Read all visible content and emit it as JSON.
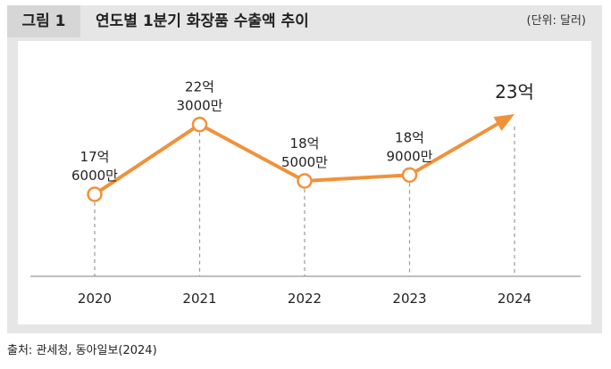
{
  "header": {
    "figure_label": "그림 1",
    "title": "연도별 1분기 화장품 수출액 추이",
    "unit": "(단위: 달러)"
  },
  "source": "출처: 관세청, 동아일보(2024)",
  "colors": {
    "line": "#f0923a",
    "marker_fill": "#ffffff",
    "guide": "#999999",
    "axis": "#aaaaaa"
  },
  "chart_data": {
    "type": "line",
    "title": "연도별 1분기 화장품 수출액 추이",
    "xlabel": "",
    "ylabel": "",
    "unit": "달러",
    "x": [
      "2020",
      "2021",
      "2022",
      "2023",
      "2024"
    ],
    "values": [
      1760000000,
      2230000000,
      1850000000,
      1890000000,
      2300000000
    ],
    "data_labels": [
      [
        "17억",
        "6000만"
      ],
      [
        "22억",
        "3000만"
      ],
      [
        "18억",
        "5000만"
      ],
      [
        "18억",
        "9000만"
      ],
      [
        "23억"
      ]
    ],
    "last_point_marker": "arrow",
    "grid": false,
    "legend": "none"
  }
}
